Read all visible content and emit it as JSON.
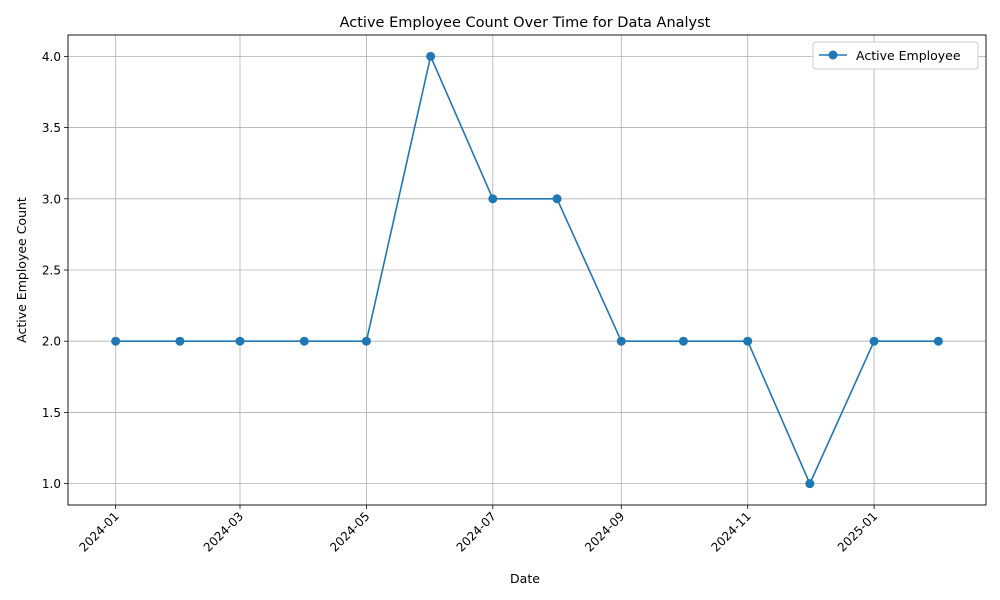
{
  "chart_data": {
    "type": "line",
    "title": "Active Employee Count Over Time for Data Analyst",
    "xlabel": "Date",
    "ylabel": "Active Employee Count",
    "x": [
      "2024-01-01",
      "2024-02-01",
      "2024-03-01",
      "2024-04-01",
      "2024-05-01",
      "2024-06-01",
      "2024-07-01",
      "2024-08-01",
      "2024-09-01",
      "2024-10-01",
      "2024-11-01",
      "2024-12-01",
      "2025-01-01",
      "2025-02-01"
    ],
    "series": [
      {
        "name": "Active Employee",
        "values": [
          2,
          2,
          2,
          2,
          2,
          4,
          3,
          3,
          2,
          2,
          2,
          1,
          2,
          2
        ],
        "color": "#1f77b4",
        "marker": "circle"
      }
    ],
    "xlim": [
      "2023-12-09",
      "2025-02-24"
    ],
    "ylim": [
      0.85,
      4.15
    ],
    "x_ticks": [
      "2024-01",
      "2024-03",
      "2024-05",
      "2024-07",
      "2024-09",
      "2024-11",
      "2025-01"
    ],
    "y_ticks": [
      "1.0",
      "1.5",
      "2.0",
      "2.5",
      "3.0",
      "3.5",
      "4.0"
    ],
    "grid": true,
    "legend_position": "top-right"
  }
}
